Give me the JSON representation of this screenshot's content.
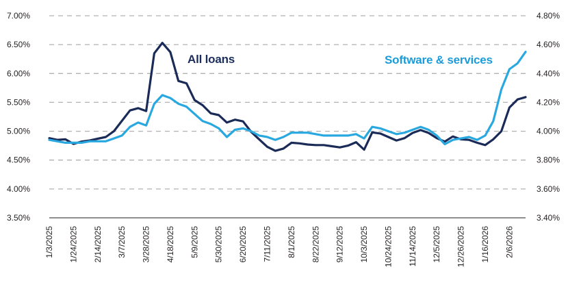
{
  "colors": {
    "navy": "#1b2b57",
    "blue": "#29a8e0",
    "navy_label": "#1b2d5c",
    "blue_label": "#1b9cd8",
    "gridline": "#b1b1b1",
    "axis_line": "#4a4a4a",
    "tick_text": "#231f20",
    "background": "#ffffff"
  },
  "chart_data": {
    "type": "line",
    "title": "",
    "xlabel": "",
    "ylabel_left": "",
    "ylabel_right": "",
    "grid": "horizontal-dashed",
    "legend_position": "inline-annotations",
    "x_tick_every": 3,
    "x_tick_labels": [
      "1/3/2025",
      "1/24/2025",
      "2/14/2025",
      "3/7/2025",
      "3/28/2025",
      "4/18/2025",
      "5/9/2025",
      "5/30/2025",
      "6/20/2025",
      "7/11/2025",
      "8/1/2025",
      "8/22/2025",
      "9/12/2025",
      "10/3/2025",
      "10/24/2025",
      "11/14/2025",
      "12/5/2025",
      "12/26/2025",
      "1/16/2026",
      "2/6/2026"
    ],
    "x_dates": [
      "1/3/2025",
      "1/10/2025",
      "1/17/2025",
      "1/24/2025",
      "1/31/2025",
      "2/7/2025",
      "2/14/2025",
      "2/21/2025",
      "2/28/2025",
      "3/7/2025",
      "3/14/2025",
      "3/21/2025",
      "3/28/2025",
      "4/4/2025",
      "4/11/2025",
      "4/18/2025",
      "4/25/2025",
      "5/2/2025",
      "5/9/2025",
      "5/16/2025",
      "5/23/2025",
      "5/30/2025",
      "6/6/2025",
      "6/13/2025",
      "6/20/2025",
      "6/27/2025",
      "7/4/2025",
      "7/11/2025",
      "7/18/2025",
      "7/25/2025",
      "8/1/2025",
      "8/8/2025",
      "8/15/2025",
      "8/22/2025",
      "8/29/2025",
      "9/5/2025",
      "9/12/2025",
      "9/19/2025",
      "9/26/2025",
      "10/3/2025",
      "10/10/2025",
      "10/17/2025",
      "10/24/2025",
      "10/31/2025",
      "11/7/2025",
      "11/14/2025",
      "11/21/2025",
      "11/28/2025",
      "12/5/2025",
      "12/12/2025",
      "12/19/2025",
      "12/26/2025",
      "1/2/2026",
      "1/9/2026",
      "1/16/2026",
      "1/23/2026",
      "1/30/2026",
      "2/6/2026",
      "2/13/2026",
      "2/20/2026"
    ],
    "left_axis": {
      "min": 3.5,
      "max": 7.0,
      "ticks": [
        "7.00%",
        "6.50%",
        "6.00%",
        "5.50%",
        "5.00%",
        "4.50%",
        "4.00%",
        "3.50%"
      ]
    },
    "right_axis": {
      "min": 3.4,
      "max": 4.8,
      "ticks": [
        "4.80%",
        "4.60%",
        "4.40%",
        "4.20%",
        "4.00%",
        "3.80%",
        "3.60%",
        "3.40%"
      ]
    },
    "series": [
      {
        "name": "All loans",
        "axis": "left",
        "color": "#1b2b57",
        "label_color": "#1b2d5c",
        "values": [
          4.88,
          4.85,
          4.86,
          4.78,
          4.82,
          4.84,
          4.87,
          4.9,
          5.0,
          5.18,
          5.36,
          5.4,
          5.35,
          6.35,
          6.53,
          6.37,
          5.87,
          5.83,
          5.54,
          5.45,
          5.31,
          5.28,
          5.15,
          5.2,
          5.17,
          4.99,
          4.86,
          4.73,
          4.66,
          4.7,
          4.8,
          4.79,
          4.77,
          4.76,
          4.76,
          4.74,
          4.72,
          4.75,
          4.81,
          4.68,
          4.98,
          4.96,
          4.9,
          4.84,
          4.88,
          4.97,
          5.02,
          4.97,
          4.88,
          4.82,
          4.91,
          4.86,
          4.85,
          4.8,
          4.76,
          4.86,
          5.0,
          5.41,
          5.55,
          5.59
        ]
      },
      {
        "name": "Software & services",
        "axis": "right",
        "color": "#29a8e0",
        "label_color": "#1b9cd8",
        "values": [
          3.94,
          3.93,
          3.92,
          3.92,
          3.92,
          3.93,
          3.93,
          3.93,
          3.95,
          3.97,
          4.03,
          4.06,
          4.04,
          4.19,
          4.25,
          4.23,
          4.19,
          4.17,
          4.12,
          4.07,
          4.05,
          4.02,
          3.96,
          4.01,
          4.02,
          4.0,
          3.97,
          3.96,
          3.94,
          3.96,
          3.99,
          3.99,
          3.99,
          3.98,
          3.97,
          3.97,
          3.97,
          3.97,
          3.98,
          3.95,
          4.03,
          4.02,
          4.0,
          3.98,
          3.99,
          4.01,
          4.03,
          4.01,
          3.97,
          3.91,
          3.94,
          3.95,
          3.96,
          3.94,
          3.97,
          4.07,
          4.29,
          4.43,
          4.47,
          4.55
        ]
      }
    ]
  }
}
